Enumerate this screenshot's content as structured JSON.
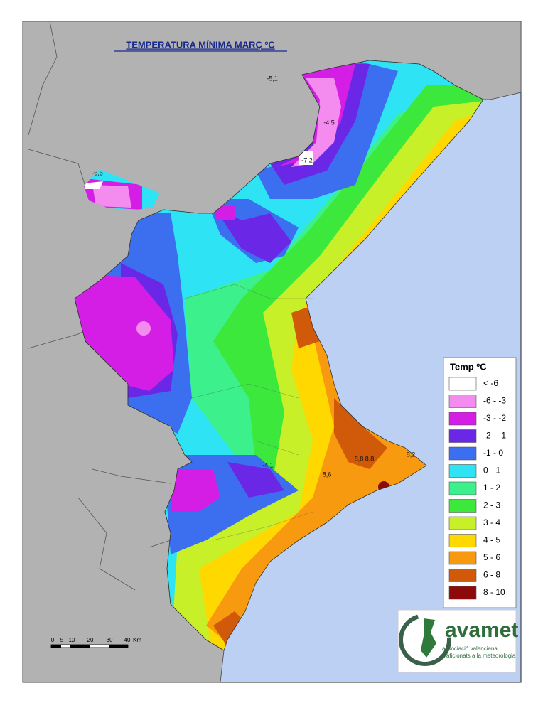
{
  "title": "TEMPERATURA MÍNIMA MARÇ ºC",
  "stations": [
    {
      "label": "-5,1"
    },
    {
      "label": "-4,5"
    },
    {
      "label": "-7,2"
    },
    {
      "label": "-6,5"
    },
    {
      "label": "-4,1"
    },
    {
      "label": "8,8"
    },
    {
      "label": "8,8"
    },
    {
      "label": "8,6"
    },
    {
      "label": "8,2"
    }
  ],
  "legend": {
    "title": "Temp ºC",
    "items": [
      {
        "label": "< -6",
        "color": "#ffffff"
      },
      {
        "label": "-6 - -3",
        "color": "#f48cf0"
      },
      {
        "label": "-3 - -2",
        "color": "#d41ee6"
      },
      {
        "label": "-2 - -1",
        "color": "#6a28e6"
      },
      {
        "label": "-1 - 0",
        "color": "#3c6ef0"
      },
      {
        "label": "0 - 1",
        "color": "#2ee4f4"
      },
      {
        "label": "1 - 2",
        "color": "#3cf08c"
      },
      {
        "label": "2 - 3",
        "color": "#3ce83c"
      },
      {
        "label": "3 - 4",
        "color": "#c8f028"
      },
      {
        "label": "4 - 5",
        "color": "#ffd800"
      },
      {
        "label": "5 - 6",
        "color": "#f89a10"
      },
      {
        "label": "6 - 8",
        "color": "#d05a0a"
      },
      {
        "label": "8 - 10",
        "color": "#8c0a0a"
      }
    ]
  },
  "scale": {
    "labels": [
      "0",
      "5",
      "10",
      "20",
      "30",
      "40",
      "Km"
    ]
  },
  "logo": {
    "name": "avamet",
    "line1": "associació valenciana",
    "line2": "d'aficionats a la meteorologia"
  }
}
